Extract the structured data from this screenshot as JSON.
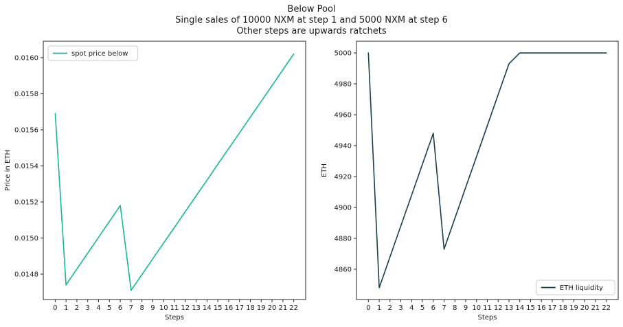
{
  "figure": {
    "title_lines": [
      "Below Pool",
      "Single sales of 10000 NXM at step 1 and 5000 NXM at step 6",
      "Other steps are upwards ratchets"
    ]
  },
  "colors": {
    "spot_price_line": "#14b991",
    "eth_liquidity_line": "#1a3e4c",
    "axis_stroke": "#262626",
    "text": "#1a1a1a",
    "legend_border": "#cccccc",
    "legend_fill": "#ffffff"
  },
  "chart_data": [
    {
      "type": "line",
      "name": "spot-price-below",
      "xlabel": "Steps",
      "ylabel": "Price in ETH",
      "legend": {
        "label": "spot price below",
        "position": "upper-left"
      },
      "line_color": "#14b991",
      "x": [
        0,
        1,
        2,
        3,
        4,
        5,
        6,
        7,
        8,
        9,
        10,
        11,
        12,
        13,
        14,
        15,
        16,
        17,
        18,
        19,
        20,
        21,
        22
      ],
      "y": [
        0.01569,
        0.01474,
        0.014828,
        0.014916,
        0.015004,
        0.015092,
        0.01518,
        0.01471,
        0.014797,
        0.014885,
        0.014972,
        0.015059,
        0.015147,
        0.015234,
        0.015321,
        0.015409,
        0.015496,
        0.015583,
        0.015671,
        0.015758,
        0.015845,
        0.015933,
        0.01602
      ],
      "xlim": [
        -1.1,
        23.1
      ],
      "ylim": [
        0.014659,
        0.016091
      ],
      "xticks": [
        0,
        1,
        2,
        3,
        4,
        5,
        6,
        7,
        8,
        9,
        10,
        11,
        12,
        13,
        14,
        15,
        16,
        17,
        18,
        19,
        20,
        21,
        22
      ],
      "xtick_labels": [
        "0",
        "1",
        "2",
        "3",
        "4",
        "5",
        "6",
        "7",
        "8",
        "9",
        "10",
        "11",
        "12",
        "13",
        "14",
        "15",
        "16",
        "17",
        "18",
        "19",
        "20",
        "21",
        "22"
      ],
      "yticks": [
        0.0148,
        0.015,
        0.0152,
        0.0154,
        0.0156,
        0.0158,
        0.016
      ],
      "ytick_labels": [
        "0.0148",
        "0.0150",
        "0.0152",
        "0.0154",
        "0.0156",
        "0.0158",
        "0.0160"
      ],
      "grid": false
    },
    {
      "type": "line",
      "name": "eth-liquidity",
      "xlabel": "Steps",
      "ylabel": "ETH",
      "legend": {
        "label": "ETH liquidity",
        "position": "lower-right"
      },
      "line_color": "#1a3e4c",
      "x": [
        0,
        1,
        2,
        3,
        4,
        5,
        6,
        7,
        8,
        9,
        10,
        11,
        12,
        13,
        14,
        15,
        16,
        17,
        18,
        19,
        20,
        21,
        22
      ],
      "y": [
        5000,
        4848,
        4868,
        4888,
        4908,
        4928,
        4948,
        4873,
        4893,
        4913,
        4933,
        4953,
        4973,
        4993,
        5000,
        5000,
        5000,
        5000,
        5000,
        5000,
        5000,
        5000,
        5000
      ],
      "xlim": [
        -1.1,
        23.1
      ],
      "ylim": [
        4840.4,
        5007.6
      ],
      "xticks": [
        0,
        1,
        2,
        3,
        4,
        5,
        6,
        7,
        8,
        9,
        10,
        11,
        12,
        13,
        14,
        15,
        16,
        17,
        18,
        19,
        20,
        21,
        22
      ],
      "xtick_labels": [
        "0",
        "1",
        "2",
        "3",
        "4",
        "5",
        "6",
        "7",
        "8",
        "9",
        "10",
        "11",
        "12",
        "13",
        "14",
        "15",
        "16",
        "17",
        "18",
        "19",
        "20",
        "21",
        "22"
      ],
      "yticks": [
        4860,
        4880,
        4900,
        4920,
        4940,
        4960,
        4980,
        5000
      ],
      "ytick_labels": [
        "4860",
        "4880",
        "4900",
        "4920",
        "4940",
        "4960",
        "4980",
        "5000"
      ],
      "grid": false
    }
  ]
}
